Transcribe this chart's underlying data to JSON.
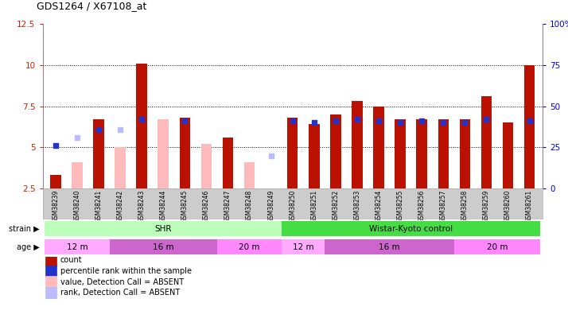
{
  "title": "GDS1264 / X67108_at",
  "samples": [
    "GSM38239",
    "GSM38240",
    "GSM38241",
    "GSM38242",
    "GSM38243",
    "GSM38244",
    "GSM38245",
    "GSM38246",
    "GSM38247",
    "GSM38248",
    "GSM38249",
    "GSM38250",
    "GSM38251",
    "GSM38252",
    "GSM38253",
    "GSM38254",
    "GSM38255",
    "GSM38256",
    "GSM38257",
    "GSM38258",
    "GSM38259",
    "GSM38260",
    "GSM38261"
  ],
  "count": [
    3.3,
    null,
    6.7,
    null,
    10.1,
    null,
    6.8,
    null,
    5.6,
    null,
    null,
    6.8,
    6.4,
    7.0,
    7.8,
    7.5,
    6.7,
    6.7,
    6.7,
    6.7,
    8.1,
    6.5,
    10.0
  ],
  "percentile_rank": [
    5.1,
    null,
    6.1,
    null,
    6.7,
    null,
    6.6,
    null,
    null,
    null,
    null,
    6.6,
    6.5,
    6.6,
    6.7,
    6.6,
    6.5,
    6.6,
    6.5,
    6.5,
    6.7,
    null,
    6.6
  ],
  "absent_value": [
    null,
    4.1,
    null,
    5.0,
    null,
    6.7,
    null,
    5.2,
    5.6,
    4.1,
    null,
    null,
    null,
    null,
    null,
    null,
    null,
    null,
    null,
    null,
    null,
    null,
    null
  ],
  "absent_rank": [
    null,
    5.6,
    null,
    6.1,
    null,
    null,
    null,
    null,
    null,
    null,
    4.5,
    null,
    null,
    null,
    null,
    null,
    null,
    null,
    null,
    null,
    null,
    null,
    null
  ],
  "ylim_left": [
    2.5,
    12.5
  ],
  "ylim_right": [
    0,
    100
  ],
  "yticks_left": [
    2.5,
    5.0,
    7.5,
    10.0,
    12.5
  ],
  "yticks_right": [
    0,
    25,
    50,
    75,
    100
  ],
  "strain_groups": [
    {
      "label": "SHR",
      "start": 0,
      "end": 11,
      "color": "#bbffbb"
    },
    {
      "label": "Wistar-Kyoto control",
      "start": 11,
      "end": 23,
      "color": "#44dd44"
    }
  ],
  "age_groups": [
    {
      "label": "12 m",
      "start": 0,
      "end": 3,
      "color": "#ffaaff"
    },
    {
      "label": "16 m",
      "start": 3,
      "end": 8,
      "color": "#cc66cc"
    },
    {
      "label": "20 m",
      "start": 8,
      "end": 11,
      "color": "#ff88ff"
    },
    {
      "label": "12 m",
      "start": 11,
      "end": 13,
      "color": "#ffaaff"
    },
    {
      "label": "16 m",
      "start": 13,
      "end": 19,
      "color": "#cc66cc"
    },
    {
      "label": "20 m",
      "start": 19,
      "end": 23,
      "color": "#ff88ff"
    }
  ],
  "bar_width": 0.5,
  "count_color": "#bb1100",
  "rank_color": "#2233cc",
  "absent_value_color": "#ffbbbb",
  "absent_rank_color": "#bbbbff",
  "grid_color": "#000000",
  "bg_color": "#ffffff",
  "axis_label_color_left": "#cc2200",
  "axis_label_color_right": "#0000cc",
  "legend_items": [
    {
      "label": "count",
      "color": "#bb1100"
    },
    {
      "label": "percentile rank within the sample",
      "color": "#2233cc"
    },
    {
      "label": "value, Detection Call = ABSENT",
      "color": "#ffbbbb"
    },
    {
      "label": "rank, Detection Call = ABSENT",
      "color": "#bbbbff"
    }
  ]
}
